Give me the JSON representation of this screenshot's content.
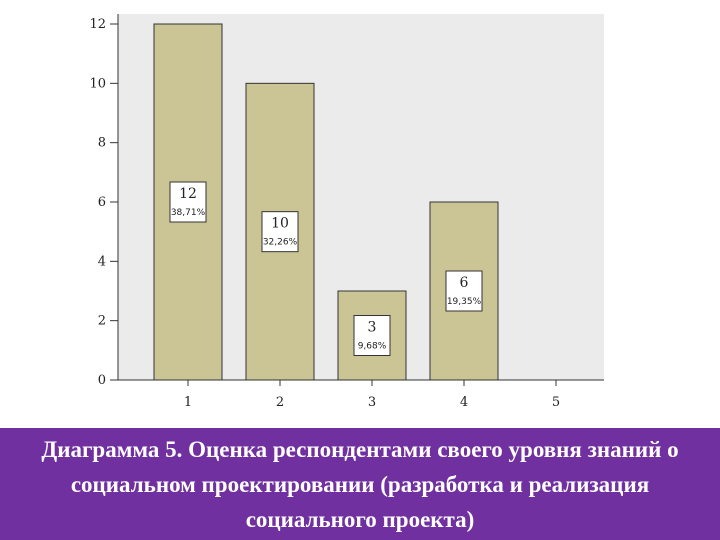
{
  "chart_data": {
    "type": "bar",
    "categories": [
      "1",
      "2",
      "3",
      "4",
      "5"
    ],
    "values": [
      12,
      10,
      3,
      6,
      0
    ],
    "data_labels": [
      {
        "count": "12",
        "percent": "38,71%"
      },
      {
        "count": "10",
        "percent": "32,26%"
      },
      {
        "count": "3",
        "percent": "9,68%"
      },
      {
        "count": "6",
        "percent": "19,35%"
      },
      null
    ],
    "y_ticks": [
      "0",
      "2",
      "4",
      "6",
      "8",
      "10",
      "12"
    ],
    "ylim": [
      0,
      12
    ],
    "bar_color": "#cbc596",
    "plot_bg": "#ebebeb",
    "grid": false
  },
  "caption": {
    "text": "Диаграмма 5. Оценка респондентами своего уровня знаний о социальном проектировании (разработка и реализация социального проекта)",
    "bg_color": "#7030a0",
    "text_color": "#ffffff"
  }
}
